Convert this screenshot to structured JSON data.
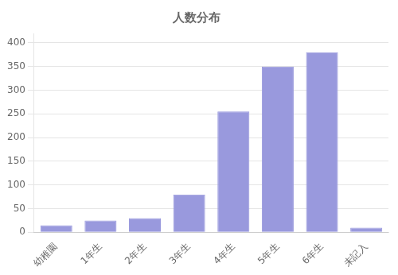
{
  "chart_data": {
    "type": "bar",
    "title": "人数分布",
    "categories": [
      "幼稚園",
      "1年生",
      "2年生",
      "3年生",
      "4年生",
      "5年生",
      "6年生",
      "未記入"
    ],
    "values": [
      15,
      25,
      30,
      80,
      255,
      350,
      380,
      10
    ],
    "color": "#9999dd",
    "ylim": [
      0,
      420
    ],
    "yticks": [
      0,
      50,
      100,
      150,
      200,
      250,
      300,
      350,
      400
    ],
    "grid": true
  }
}
